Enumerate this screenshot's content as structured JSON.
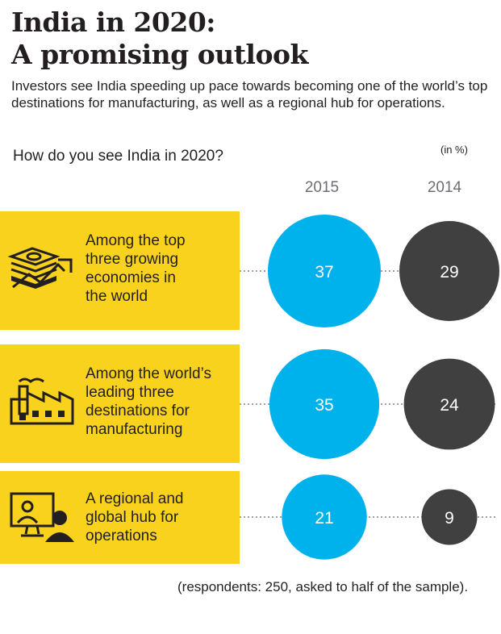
{
  "header": {
    "title_line1": "India in 2020:",
    "title_line2": "A promising outlook",
    "subtitle": "Investors see India speeding up pace towards becoming one of the world’s top destinations for manufacturing, as well as a regional hub for operations."
  },
  "question": "How do you see India in 2020?",
  "unit": "(in %)",
  "footnote": "(respondents: 250, asked to half of the sample).",
  "colors": {
    "box": "#f9d21d",
    "c2015": "#00b2ec",
    "c2014": "#404041",
    "dots": "#808080"
  },
  "chart_data": {
    "type": "bubble",
    "categories": [
      "Among the top three growing economies in the world",
      "Among the world’s leading three destinations for manufacturing",
      "A regional and global hub for operations"
    ],
    "series": [
      {
        "name": "2015",
        "values": [
          37,
          35,
          21
        ]
      },
      {
        "name": "2014",
        "values": [
          29,
          24,
          9
        ]
      }
    ]
  },
  "rows": [
    {
      "icon": "money-growth-icon",
      "lines": [
        "Among the top",
        "three growing",
        "economies in",
        "the world"
      ]
    },
    {
      "icon": "factory-icon",
      "lines": [
        "Among the world’s",
        "leading three",
        "destinations for",
        "manufacturing"
      ]
    },
    {
      "icon": "video-conference-icon",
      "lines": [
        "A regional and",
        "global hub for",
        "operations"
      ]
    }
  ]
}
